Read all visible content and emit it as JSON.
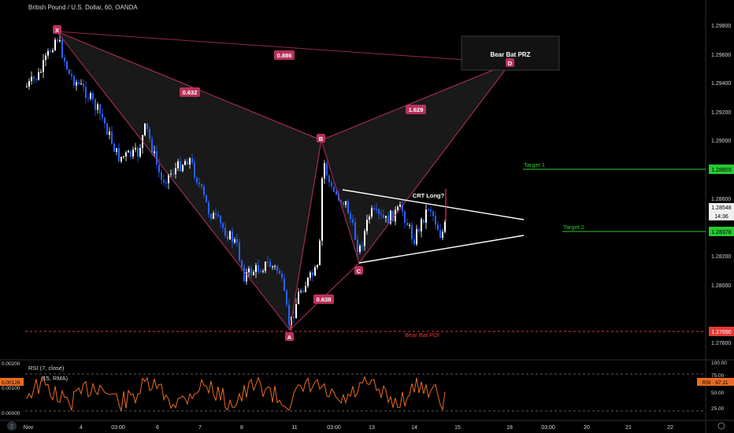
{
  "header": {
    "symbol_title": "British Pound / U.S. Dollar, 60, OANDA"
  },
  "price_scale": {
    "ticks": [
      "1.29800",
      "1.29600",
      "1.29400",
      "1.29200",
      "1.29000",
      "1.28600",
      "1.28200",
      "1.28000",
      "1.27600"
    ],
    "labels": {
      "target1": "1.28803",
      "last_price": "1.28548",
      "countdown": "14:36",
      "target2": "1.28378",
      "poi": "1.27690"
    }
  },
  "time_axis": {
    "labels": [
      "Nov",
      "4",
      "03:00",
      "6",
      "7",
      "8",
      "11",
      "03:00",
      "13",
      "14",
      "15",
      "18",
      "03:00",
      "20",
      "21",
      "22"
    ]
  },
  "pattern": {
    "points": {
      "x": "X",
      "a": "A",
      "b": "B",
      "c": "C",
      "d": "D"
    },
    "ratios": {
      "xd": "0.886",
      "xb": "0.632",
      "bd": "1.629",
      "ac": "0.638"
    }
  },
  "annotations": {
    "prz_box": "Bear Bat PRZ",
    "crt": "CRT Long?",
    "target1": "Target 1",
    "target2": "Target 2",
    "poi": "Bear Bat POI"
  },
  "rsi": {
    "title": "RSI (7, close)",
    "ma_title": "(15, RMA)",
    "value_label": "RSI · 67.11",
    "left_ticks": [
      "0.00200",
      "0.00100",
      "0.00000"
    ],
    "left_value": "0.00128",
    "right_ticks": [
      "100.00",
      "75.00",
      "50.00",
      "25.00"
    ]
  },
  "colors": {
    "background": "#000000",
    "candle_up": "#ffffff",
    "candle_down": "#2962ff",
    "pattern_line": "#b7325c",
    "target_line": "#26c931",
    "poi_line": "#e53935",
    "rsi_line": "#e86c1e",
    "label_bg": "#f0f0f0"
  },
  "icons": {
    "logo": "tradingview-logo-icon",
    "zoom": "zoom-icon"
  }
}
